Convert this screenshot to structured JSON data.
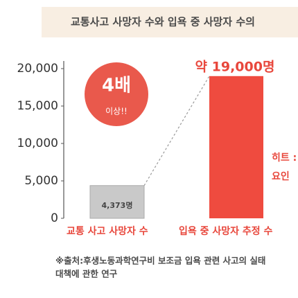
{
  "chart_data": {
    "type": "bar",
    "title": "교통사고 사망자 수와 입욕 중 사망자 수의",
    "categories": [
      "교통 사고 사망자 수",
      "입욕 중 사망자 추정 수"
    ],
    "values": [
      4373,
      19000
    ],
    "value_labels": [
      "4,373명",
      "약 19,000명"
    ],
    "colors": [
      "#c9c9c9",
      "#ef4b3f"
    ],
    "ylim": [
      0,
      20000
    ],
    "yticks": [
      0,
      {
        "value": 5000,
        "label": "5,000"
      },
      {
        "value": 10000,
        "label": "10,000"
      },
      {
        "value": 15000,
        "label": "15,000"
      },
      {
        "value": 20000,
        "label": "20,000"
      }
    ],
    "annotations": {
      "multiplier": "4배",
      "multiplier_note": "이상!!",
      "side_note": [
        "히트 :",
        "요인"
      ]
    },
    "source": [
      "※출처:후생노동과학연구비 보조금 입욕 관련 사고의 실태",
      "대책에 관한 연구"
    ]
  }
}
